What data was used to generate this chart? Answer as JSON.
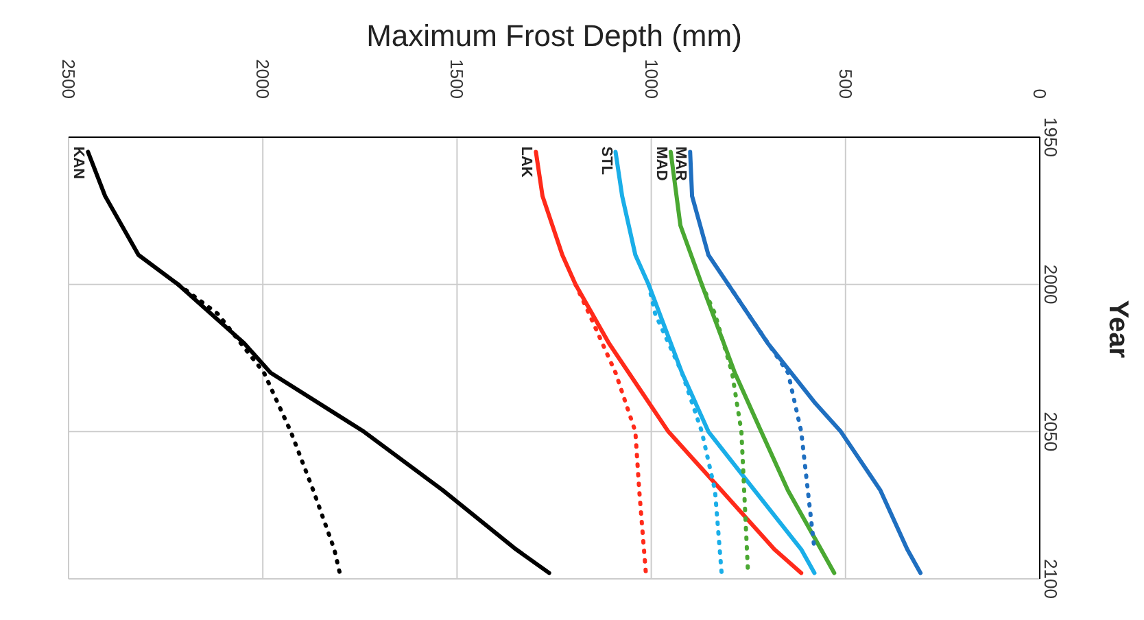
{
  "chart_data": {
    "type": "line",
    "orientation": "horizontal",
    "xlabel": "Maximum Frost Depth (mm)",
    "ylabel": "Year",
    "xlim": [
      2500,
      0
    ],
    "xticks": [
      2500,
      2000,
      1500,
      1000,
      500,
      0
    ],
    "ylim": [
      2100,
      1950
    ],
    "yticks": [
      1950,
      2000,
      2050,
      2100
    ],
    "grid": true,
    "marker": "none",
    "series": [
      {
        "name": "KAN",
        "color": "#000000",
        "line_style": "solid",
        "x": [
          1955,
          1970,
          1990,
          2000,
          2020,
          2030,
          2050,
          2070,
          2090,
          2098
        ],
        "values": [
          2450,
          2406,
          2320,
          2218,
          2048,
          1980,
          1740,
          1536,
          1348,
          1263
        ]
      },
      {
        "color": "#000000",
        "line_style": "dotted",
        "x": [
          2000,
          2010,
          2030,
          2050,
          2070,
          2090,
          2098
        ],
        "values": [
          2218,
          2116,
          1997,
          1928,
          1870,
          1816,
          1802
        ]
      },
      {
        "name": "LAK",
        "color": "#ff2a1a",
        "line_style": "solid",
        "x": [
          1955,
          1970,
          1990,
          2000,
          2020,
          2030,
          2050,
          2070,
          2090,
          2098
        ],
        "values": [
          1297,
          1280,
          1229,
          1195,
          1109,
          1058,
          956,
          819,
          683,
          614
        ]
      },
      {
        "color": "#ff2a1a",
        "line_style": "dotted",
        "x": [
          2000,
          2010,
          2030,
          2050,
          2070,
          2098
        ],
        "values": [
          1195,
          1160,
          1092,
          1041,
          1031,
          1014
        ]
      },
      {
        "name": "STL",
        "color": "#1aaee8",
        "line_style": "solid",
        "x": [
          1955,
          1970,
          1990,
          2000,
          2030,
          2050,
          2070,
          2090,
          2098
        ],
        "values": [
          1092,
          1075,
          1041,
          1007,
          921,
          853,
          734,
          614,
          580
        ]
      },
      {
        "color": "#1aaee8",
        "line_style": "dotted",
        "x": [
          2000,
          2010,
          2030,
          2050,
          2070,
          2098
        ],
        "values": [
          1007,
          990,
          921,
          870,
          836,
          819
        ]
      },
      {
        "name": "MAD",
        "color": "#4aa832",
        "line_style": "solid",
        "x": [
          1955,
          1980,
          2000,
          2030,
          2050,
          2070,
          2090,
          2098
        ],
        "values": [
          950,
          925,
          870,
          785,
          717,
          648,
          563,
          529
        ]
      },
      {
        "color": "#4aa832",
        "line_style": "dotted",
        "x": [
          2000,
          2010,
          2030,
          2050,
          2098
        ],
        "values": [
          870,
          836,
          792,
          768,
          751
        ]
      },
      {
        "name": "MAR",
        "color": "#1f6fc0",
        "line_style": "solid",
        "x": [
          1955,
          1970,
          1990,
          2000,
          2020,
          2040,
          2050,
          2070,
          2090,
          2098
        ],
        "values": [
          900,
          895,
          853,
          802,
          700,
          580,
          512,
          410,
          341,
          307
        ]
      },
      {
        "color": "#1f6fc0",
        "line_style": "dotted",
        "x": [
          2000,
          2010,
          2030,
          2050,
          2070,
          2090
        ],
        "values": [
          802,
          751,
          648,
          614,
          597,
          580
        ]
      }
    ]
  }
}
